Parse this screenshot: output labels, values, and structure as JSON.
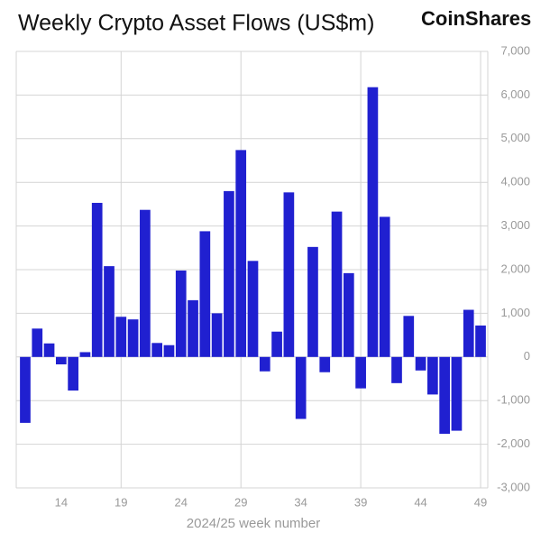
{
  "chart_data": {
    "type": "bar",
    "title": "Weekly Crypto Asset Flows (US$m)",
    "logo": "CoinShares",
    "x_label": "2024/25 week number",
    "x": [
      11,
      12,
      13,
      14,
      15,
      16,
      17,
      18,
      19,
      20,
      21,
      22,
      23,
      24,
      25,
      26,
      27,
      28,
      29,
      30,
      31,
      32,
      33,
      34,
      35,
      36,
      37,
      38,
      39,
      40,
      41,
      42,
      43,
      44,
      45,
      46,
      47,
      48,
      49
    ],
    "values": [
      -1510,
      650,
      310,
      -170,
      -770,
      110,
      3530,
      2080,
      920,
      860,
      3370,
      320,
      270,
      1980,
      1300,
      2880,
      1000,
      3800,
      4740,
      2200,
      -330,
      580,
      3770,
      -1420,
      2520,
      -350,
      3330,
      1920,
      -720,
      6180,
      3210,
      -600,
      940,
      -310,
      -860,
      -1760,
      -1690,
      1080,
      720
    ],
    "color": "#2020d0",
    "xlim": [
      10.25,
      49.6
    ],
    "xticks": [
      14,
      19,
      24,
      29,
      34,
      39,
      44,
      49
    ],
    "ylim": [
      -3000,
      7000
    ],
    "yticks": [
      {
        "value": -3000,
        "label": "-3,000"
      },
      {
        "value": -2000,
        "label": "-2,000"
      },
      {
        "value": -1000,
        "label": "-1,000"
      },
      0,
      {
        "value": 1000,
        "label": "1,000"
      },
      {
        "value": 2000,
        "label": "2,000"
      },
      {
        "value": 3000,
        "label": "3,000"
      },
      {
        "value": 4000,
        "label": "4,000"
      },
      {
        "value": 5000,
        "label": "5,000"
      },
      {
        "value": 6000,
        "label": "6,000"
      },
      {
        "value": 7000,
        "label": "7,000"
      }
    ],
    "grid": true
  }
}
